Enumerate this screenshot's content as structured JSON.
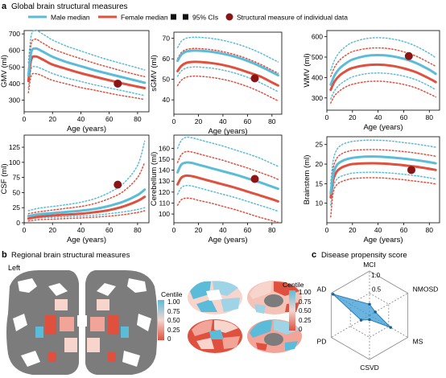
{
  "colors": {
    "male": "#5bbcd9",
    "female": "#e0503e",
    "individual": "#8b1414",
    "radar_fill": "#3b9bd6",
    "centile_low": "#e0503e",
    "centile_mid": "#f4d6d0",
    "centile_high": "#5bbcd9",
    "brain_gray": "#7c7c7c"
  },
  "panel_a": {
    "letter": "a",
    "title": "Global brain structural measures",
    "legend": {
      "male": "Male median",
      "female": "Female median",
      "ci": "95% CIs",
      "individual": "Structural measure of individual data"
    }
  },
  "panel_b": {
    "letter": "b",
    "title": "Regional brain structural measures",
    "side_label": "Left",
    "colorbar_title": "Centile",
    "colorbar_ticks": [
      "1.00",
      "0.75",
      "0.50",
      "0.25",
      "0"
    ]
  },
  "panel_c": {
    "letter": "c",
    "title": "Disease propensity score"
  },
  "chart_data": [
    {
      "type": "line",
      "xlabel": "Age (years)",
      "ylabel": "GMV (ml)",
      "xlim": [
        0,
        88
      ],
      "ylim": [
        230,
        720
      ],
      "xticks": [
        0,
        20,
        40,
        60,
        80
      ],
      "yticks": [
        300,
        400,
        500,
        600,
        700
      ],
      "x": [
        3,
        5,
        8,
        12,
        16,
        20,
        30,
        40,
        50,
        60,
        70,
        80,
        85
      ],
      "series": [
        {
          "name": "Male median",
          "role": "male",
          "values": [
            450,
            590,
            612,
            598,
            580,
            562,
            530,
            505,
            480,
            458,
            437,
            416,
            405
          ]
        },
        {
          "name": "Female median",
          "role": "female",
          "values": [
            415,
            545,
            564,
            550,
            532,
            515,
            488,
            463,
            441,
            420,
            400,
            382,
            373
          ]
        },
        {
          "name": "95% CIs",
          "role": "male-ci",
          "values": [
            525,
            690,
            722,
            705,
            684,
            663,
            626,
            597,
            568,
            542,
            518,
            495,
            482
          ]
        },
        {
          "name": "95% CIs",
          "role": "male-ci",
          "values": [
            375,
            490,
            502,
            491,
            476,
            461,
            434,
            413,
            392,
            374,
            356,
            337,
            328
          ]
        },
        {
          "name": "95% CIs",
          "role": "female-ci",
          "values": [
            485,
            642,
            668,
            650,
            630,
            610,
            578,
            550,
            522,
            498,
            474,
            452,
            442
          ]
        },
        {
          "name": "95% CIs",
          "role": "female-ci",
          "values": [
            345,
            448,
            460,
            450,
            434,
            420,
            398,
            376,
            360,
            342,
            326,
            312,
            304
          ]
        }
      ],
      "individual": {
        "x": 66,
        "y": 400
      }
    },
    {
      "type": "line",
      "xlabel": "Age (years)",
      "ylabel": "sGMV (ml)",
      "xlim": [
        0,
        88
      ],
      "ylim": [
        33,
        73
      ],
      "xticks": [
        0,
        20,
        40,
        60,
        80
      ],
      "yticks": [
        40,
        50,
        60,
        70
      ],
      "x": [
        3,
        6,
        10,
        15,
        20,
        30,
        40,
        50,
        60,
        70,
        80,
        85
      ],
      "series": [
        {
          "name": "Male median",
          "role": "male",
          "values": [
            59,
            62,
            63.5,
            64,
            64,
            63.5,
            62.5,
            61,
            59,
            56.5,
            53.5,
            52
          ]
        },
        {
          "name": "Female median",
          "role": "female",
          "values": [
            54,
            56.5,
            58,
            58.5,
            58.5,
            58,
            57,
            55.5,
            53.5,
            51.5,
            48.5,
            47
          ]
        },
        {
          "name": "95% CIs",
          "role": "male-ci",
          "values": [
            65.5,
            68.5,
            70,
            70.5,
            70.5,
            70,
            69,
            67.5,
            65.5,
            63,
            60,
            58.5
          ]
        },
        {
          "name": "95% CIs",
          "role": "male-ci",
          "values": [
            51.5,
            54,
            55.5,
            56,
            56,
            55.5,
            54.5,
            53,
            51,
            48.5,
            45.5,
            44
          ]
        },
        {
          "name": "95% CIs",
          "role": "female-ci",
          "values": [
            60,
            63,
            64.5,
            65,
            65,
            64.5,
            63.5,
            62,
            60,
            57.5,
            54.5,
            53
          ]
        },
        {
          "name": "95% CIs",
          "role": "female-ci",
          "values": [
            47,
            49.5,
            51,
            51.5,
            51.5,
            51,
            50,
            48.5,
            46.5,
            44,
            41,
            39.5
          ]
        }
      ],
      "individual": {
        "x": 66,
        "y": 50.5
      }
    },
    {
      "type": "line",
      "xlabel": "Age (years)",
      "ylabel": "WMV (ml)",
      "xlim": [
        0,
        88
      ],
      "ylim": [
        240,
        630
      ],
      "xticks": [
        0,
        20,
        40,
        60,
        80
      ],
      "yticks": [
        300,
        400,
        500,
        600
      ],
      "x": [
        3,
        6,
        10,
        15,
        20,
        30,
        40,
        50,
        60,
        70,
        80,
        85
      ],
      "series": [
        {
          "name": "Male median",
          "role": "male",
          "values": [
            365,
            410,
            445,
            470,
            488,
            505,
            510,
            505,
            492,
            470,
            438,
            418
          ]
        },
        {
          "name": "Female median",
          "role": "female",
          "values": [
            340,
            380,
            410,
            432,
            447,
            460,
            463,
            458,
            445,
            425,
            395,
            378
          ]
        },
        {
          "name": "95% CIs",
          "role": "male-ci",
          "values": [
            435,
            485,
            525,
            553,
            572,
            590,
            595,
            590,
            576,
            552,
            518,
            497
          ]
        },
        {
          "name": "95% CIs",
          "role": "male-ci",
          "values": [
            295,
            335,
            365,
            387,
            403,
            418,
            422,
            418,
            407,
            388,
            358,
            340
          ]
        },
        {
          "name": "95% CIs",
          "role": "female-ci",
          "values": [
            405,
            450,
            485,
            510,
            527,
            541,
            545,
            540,
            526,
            504,
            472,
            455
          ]
        },
        {
          "name": "95% CIs",
          "role": "female-ci",
          "values": [
            275,
            310,
            335,
            355,
            367,
            379,
            382,
            377,
            366,
            348,
            320,
            305
          ]
        }
      ],
      "individual": {
        "x": 64,
        "y": 505
      }
    },
    {
      "type": "line",
      "xlabel": "Age (years)",
      "ylabel": "CSF (ml)",
      "xlim": [
        0,
        88
      ],
      "ylim": [
        0,
        145
      ],
      "xticks": [
        0,
        20,
        40,
        60,
        80
      ],
      "yticks": [
        0,
        25,
        50,
        75,
        100,
        125
      ],
      "x": [
        3,
        10,
        20,
        30,
        40,
        50,
        60,
        70,
        80,
        85
      ],
      "series": [
        {
          "name": "Male median",
          "role": "male",
          "values": [
            11,
            14,
            16,
            18,
            20,
            23,
            28,
            35,
            46,
            55
          ]
        },
        {
          "name": "Female median",
          "role": "female",
          "values": [
            7,
            10,
            12,
            13.5,
            15,
            17.5,
            21,
            27,
            36,
            43
          ]
        },
        {
          "name": "95% CIs",
          "role": "male-ci",
          "values": [
            20,
            24,
            27,
            30,
            34,
            40,
            50,
            65,
            95,
            135
          ]
        },
        {
          "name": "95% CIs",
          "role": "male-ci",
          "values": [
            6,
            8,
            9,
            10,
            11,
            12.5,
            15,
            18,
            22,
            25
          ]
        },
        {
          "name": "95% CIs",
          "role": "female-ci",
          "values": [
            15,
            18,
            21,
            24,
            27,
            32,
            40,
            52,
            75,
            100
          ]
        },
        {
          "name": "95% CIs",
          "role": "female-ci",
          "values": [
            3,
            5,
            6,
            7,
            8,
            9.5,
            11,
            13.5,
            17,
            20
          ]
        }
      ],
      "individual": {
        "x": 66,
        "y": 63
      }
    },
    {
      "type": "line",
      "xlabel": "Age (years)",
      "ylabel": "Cerebellum (ml)",
      "xlim": [
        0,
        88
      ],
      "ylim": [
        92,
        172
      ],
      "xticks": [
        0,
        20,
        40,
        60,
        80
      ],
      "yticks": [
        100,
        110,
        120,
        130,
        140,
        150,
        160
      ],
      "x": [
        3,
        6,
        10,
        15,
        20,
        30,
        40,
        50,
        60,
        70,
        80,
        85
      ],
      "series": [
        {
          "name": "Male median",
          "role": "male",
          "values": [
            138,
            145,
            147,
            146.5,
            145,
            142,
            139,
            136,
            132.5,
            129,
            125,
            123
          ]
        },
        {
          "name": "Female median",
          "role": "female",
          "values": [
            127,
            133,
            135,
            134.5,
            133,
            130,
            127,
            124,
            120.5,
            117,
            113.5,
            111.5
          ]
        },
        {
          "name": "95% CIs",
          "role": "male-ci",
          "values": [
            160,
            167,
            170,
            169.5,
            168,
            165,
            162,
            158.5,
            155,
            151,
            146,
            143.5
          ]
        },
        {
          "name": "95% CIs",
          "role": "male-ci",
          "values": [
            118,
            124,
            126,
            125.5,
            124,
            121,
            118,
            115,
            111.5,
            108,
            104.5,
            102.5
          ]
        },
        {
          "name": "95% CIs",
          "role": "female-ci",
          "values": [
            147,
            154,
            157,
            156.5,
            155,
            152,
            149,
            145.5,
            142,
            138,
            134,
            131.5
          ]
        },
        {
          "name": "95% CIs",
          "role": "female-ci",
          "values": [
            108,
            113,
            114.5,
            114,
            112.5,
            110,
            107,
            104,
            100.5,
            97,
            94,
            92.5
          ]
        }
      ],
      "individual": {
        "x": 66,
        "y": 132
      }
    },
    {
      "type": "line",
      "xlabel": "Age (years)",
      "ylabel": "Brainstem (ml)",
      "xlim": [
        0,
        88
      ],
      "ylim": [
        5,
        27
      ],
      "xticks": [
        0,
        20,
        40,
        60,
        80
      ],
      "yticks": [
        10,
        15,
        20,
        25
      ],
      "x": [
        3,
        5,
        8,
        12,
        16,
        20,
        30,
        40,
        50,
        60,
        70,
        80,
        85
      ],
      "series": [
        {
          "name": "Male median",
          "role": "male",
          "values": [
            12.5,
            17.5,
            19.8,
            20.8,
            21.3,
            21.6,
            21.9,
            21.9,
            21.7,
            21.4,
            21,
            20.5,
            20.2
          ]
        },
        {
          "name": "Female median",
          "role": "female",
          "values": [
            11.5,
            16,
            18.2,
            19.2,
            19.7,
            20,
            20.2,
            20.2,
            20,
            19.7,
            19.3,
            18.8,
            18.5
          ]
        },
        {
          "name": "95% CIs",
          "role": "male-ci",
          "values": [
            15,
            21,
            23.8,
            25,
            25.5,
            25.8,
            26.1,
            26.1,
            25.9,
            25.5,
            25.1,
            24.6,
            24.3
          ]
        },
        {
          "name": "95% CIs",
          "role": "male-ci",
          "values": [
            9.5,
            14.2,
            16.2,
            17,
            17.4,
            17.7,
            17.9,
            17.9,
            17.7,
            17.4,
            17,
            16.5,
            16.2
          ]
        },
        {
          "name": "95% CIs",
          "role": "female-ci",
          "values": [
            13.5,
            19,
            21.6,
            22.7,
            23.2,
            23.5,
            23.7,
            23.7,
            23.5,
            23.2,
            22.8,
            22.3,
            22
          ]
        },
        {
          "name": "95% CIs",
          "role": "female-ci",
          "values": [
            6.5,
            12.8,
            14.8,
            15.6,
            16,
            16.3,
            16.5,
            16.5,
            16.3,
            16,
            15.6,
            15.2,
            14.9
          ]
        }
      ],
      "individual": {
        "x": 66,
        "y": 18.5
      }
    },
    {
      "type": "radar",
      "axes": [
        "MCI",
        "NMOSD",
        "MS",
        "CSVD",
        "PD",
        "AD"
      ],
      "values": [
        0.25,
        0.15,
        0.55,
        0.1,
        0.22,
        0.95
      ],
      "ticks": [
        "0.5",
        "1.0"
      ],
      "rmax": 1.0
    }
  ]
}
